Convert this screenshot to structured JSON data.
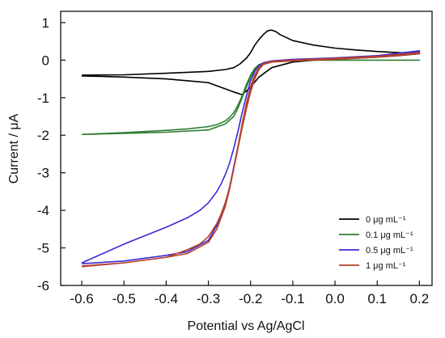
{
  "chart_data": {
    "type": "line",
    "xlabel": "Potential vs Ag/AgCl",
    "ylabel": "Current / μA",
    "xlim": [
      -0.65,
      0.23
    ],
    "ylim": [
      -6,
      1.3
    ],
    "xticks": [
      -0.6,
      -0.5,
      -0.4,
      -0.3,
      -0.2,
      -0.1,
      0.0,
      0.1,
      0.2
    ],
    "xtick_labels": [
      "-0.6",
      "-0.5",
      "-0.4",
      "-0.3",
      "-0.2",
      "-0.1",
      "0.0",
      "0.1",
      "0.2"
    ],
    "yticks": [
      1,
      0,
      -1,
      -2,
      -3,
      -4,
      -5,
      -6
    ],
    "ytick_labels": [
      "1",
      "0",
      "-1",
      "-2",
      "-3",
      "-4",
      "-5",
      "-6"
    ],
    "grid": false,
    "legend_position": "bottom-right",
    "series": [
      {
        "name": "0 μg mL⁻¹",
        "color": "#000000",
        "x": [
          -0.6,
          -0.5,
          -0.4,
          -0.3,
          -0.26,
          -0.24,
          -0.225,
          -0.21,
          -0.2,
          -0.19,
          -0.18,
          -0.17,
          -0.16,
          -0.15,
          -0.14,
          -0.13,
          -0.1,
          -0.05,
          0.0,
          0.05,
          0.1,
          0.15,
          0.2,
          0.2,
          0.15,
          0.1,
          0.05,
          0.0,
          -0.05,
          -0.1,
          -0.15,
          -0.18,
          -0.2,
          -0.22,
          -0.24,
          -0.3,
          -0.4,
          -0.5,
          -0.6
        ],
        "y": [
          -0.4,
          -0.39,
          -0.35,
          -0.3,
          -0.25,
          -0.2,
          -0.1,
          0.05,
          0.2,
          0.4,
          0.55,
          0.68,
          0.78,
          0.8,
          0.76,
          0.68,
          0.52,
          0.4,
          0.32,
          0.27,
          0.23,
          0.2,
          0.18,
          0.17,
          0.12,
          0.08,
          0.05,
          0.03,
          0.0,
          -0.05,
          -0.2,
          -0.45,
          -0.72,
          -0.92,
          -0.85,
          -0.6,
          -0.5,
          -0.45,
          -0.42
        ]
      },
      {
        "name": "0.1 μg mL⁻¹",
        "color": "#2e7d32",
        "x": [
          -0.6,
          -0.5,
          -0.4,
          -0.35,
          -0.3,
          -0.28,
          -0.26,
          -0.25,
          -0.24,
          -0.23,
          -0.22,
          -0.21,
          -0.2,
          -0.19,
          -0.18,
          -0.16,
          -0.1,
          0.0,
          0.1,
          0.2,
          0.2,
          0.1,
          0.0,
          -0.1,
          -0.16,
          -0.18,
          -0.19,
          -0.2,
          -0.21,
          -0.22,
          -0.23,
          -0.24,
          -0.26,
          -0.3,
          -0.4,
          -0.5,
          -0.6
        ],
        "y": [
          -1.98,
          -1.93,
          -1.87,
          -1.83,
          -1.77,
          -1.72,
          -1.62,
          -1.53,
          -1.4,
          -1.2,
          -0.95,
          -0.65,
          -0.4,
          -0.22,
          -0.12,
          -0.05,
          0.0,
          0.0,
          0.0,
          0.0,
          0.0,
          0.0,
          0.0,
          0.0,
          -0.06,
          -0.15,
          -0.27,
          -0.45,
          -0.72,
          -1.0,
          -1.28,
          -1.5,
          -1.7,
          -1.86,
          -1.92,
          -1.95,
          -1.98
        ]
      },
      {
        "name": "0.5 μg mL⁻¹",
        "color": "#3a2bd6",
        "x": [
          -0.6,
          -0.5,
          -0.4,
          -0.35,
          -0.32,
          -0.3,
          -0.28,
          -0.27,
          -0.26,
          -0.25,
          -0.24,
          -0.23,
          -0.22,
          -0.21,
          -0.2,
          -0.19,
          -0.18,
          -0.17,
          -0.15,
          -0.1,
          0.0,
          0.1,
          0.2,
          0.2,
          0.1,
          0.0,
          -0.1,
          -0.15,
          -0.17,
          -0.18,
          -0.19,
          -0.2,
          -0.21,
          -0.22,
          -0.23,
          -0.24,
          -0.25,
          -0.26,
          -0.28,
          -0.3,
          -0.35,
          -0.4,
          -0.5,
          -0.6
        ],
        "y": [
          -5.4,
          -4.9,
          -4.45,
          -4.2,
          -4.0,
          -3.8,
          -3.5,
          -3.3,
          -3.05,
          -2.75,
          -2.35,
          -1.9,
          -1.4,
          -0.95,
          -0.55,
          -0.3,
          -0.15,
          -0.07,
          -0.02,
          0.02,
          0.06,
          0.12,
          0.25,
          0.22,
          0.1,
          0.04,
          0.0,
          -0.03,
          -0.1,
          -0.22,
          -0.45,
          -0.8,
          -1.25,
          -1.75,
          -2.3,
          -2.85,
          -3.4,
          -3.85,
          -4.4,
          -4.8,
          -5.1,
          -5.2,
          -5.35,
          -5.42
        ]
      },
      {
        "name": "1 μg mL⁻¹",
        "color": "#b5412e",
        "x": [
          -0.6,
          -0.5,
          -0.4,
          -0.35,
          -0.32,
          -0.3,
          -0.28,
          -0.27,
          -0.26,
          -0.25,
          -0.24,
          -0.23,
          -0.22,
          -0.21,
          -0.2,
          -0.19,
          -0.18,
          -0.17,
          -0.15,
          -0.1,
          0.0,
          0.1,
          0.2,
          0.2,
          0.1,
          0.0,
          -0.1,
          -0.15,
          -0.17,
          -0.18,
          -0.19,
          -0.2,
          -0.21,
          -0.22,
          -0.23,
          -0.24,
          -0.25,
          -0.26,
          -0.28,
          -0.3,
          -0.35,
          -0.4,
          -0.5,
          -0.6
        ],
        "y": [
          -5.5,
          -5.4,
          -5.25,
          -5.05,
          -4.9,
          -4.7,
          -4.35,
          -4.1,
          -3.8,
          -3.4,
          -2.9,
          -2.3,
          -1.7,
          -1.15,
          -0.7,
          -0.4,
          -0.2,
          -0.1,
          -0.03,
          0.0,
          0.05,
          0.1,
          0.2,
          0.17,
          0.08,
          0.02,
          -0.02,
          -0.05,
          -0.12,
          -0.25,
          -0.5,
          -0.85,
          -1.3,
          -1.8,
          -2.35,
          -2.9,
          -3.45,
          -3.9,
          -4.5,
          -4.85,
          -5.15,
          -5.25,
          -5.4,
          -5.48
        ]
      }
    ]
  }
}
